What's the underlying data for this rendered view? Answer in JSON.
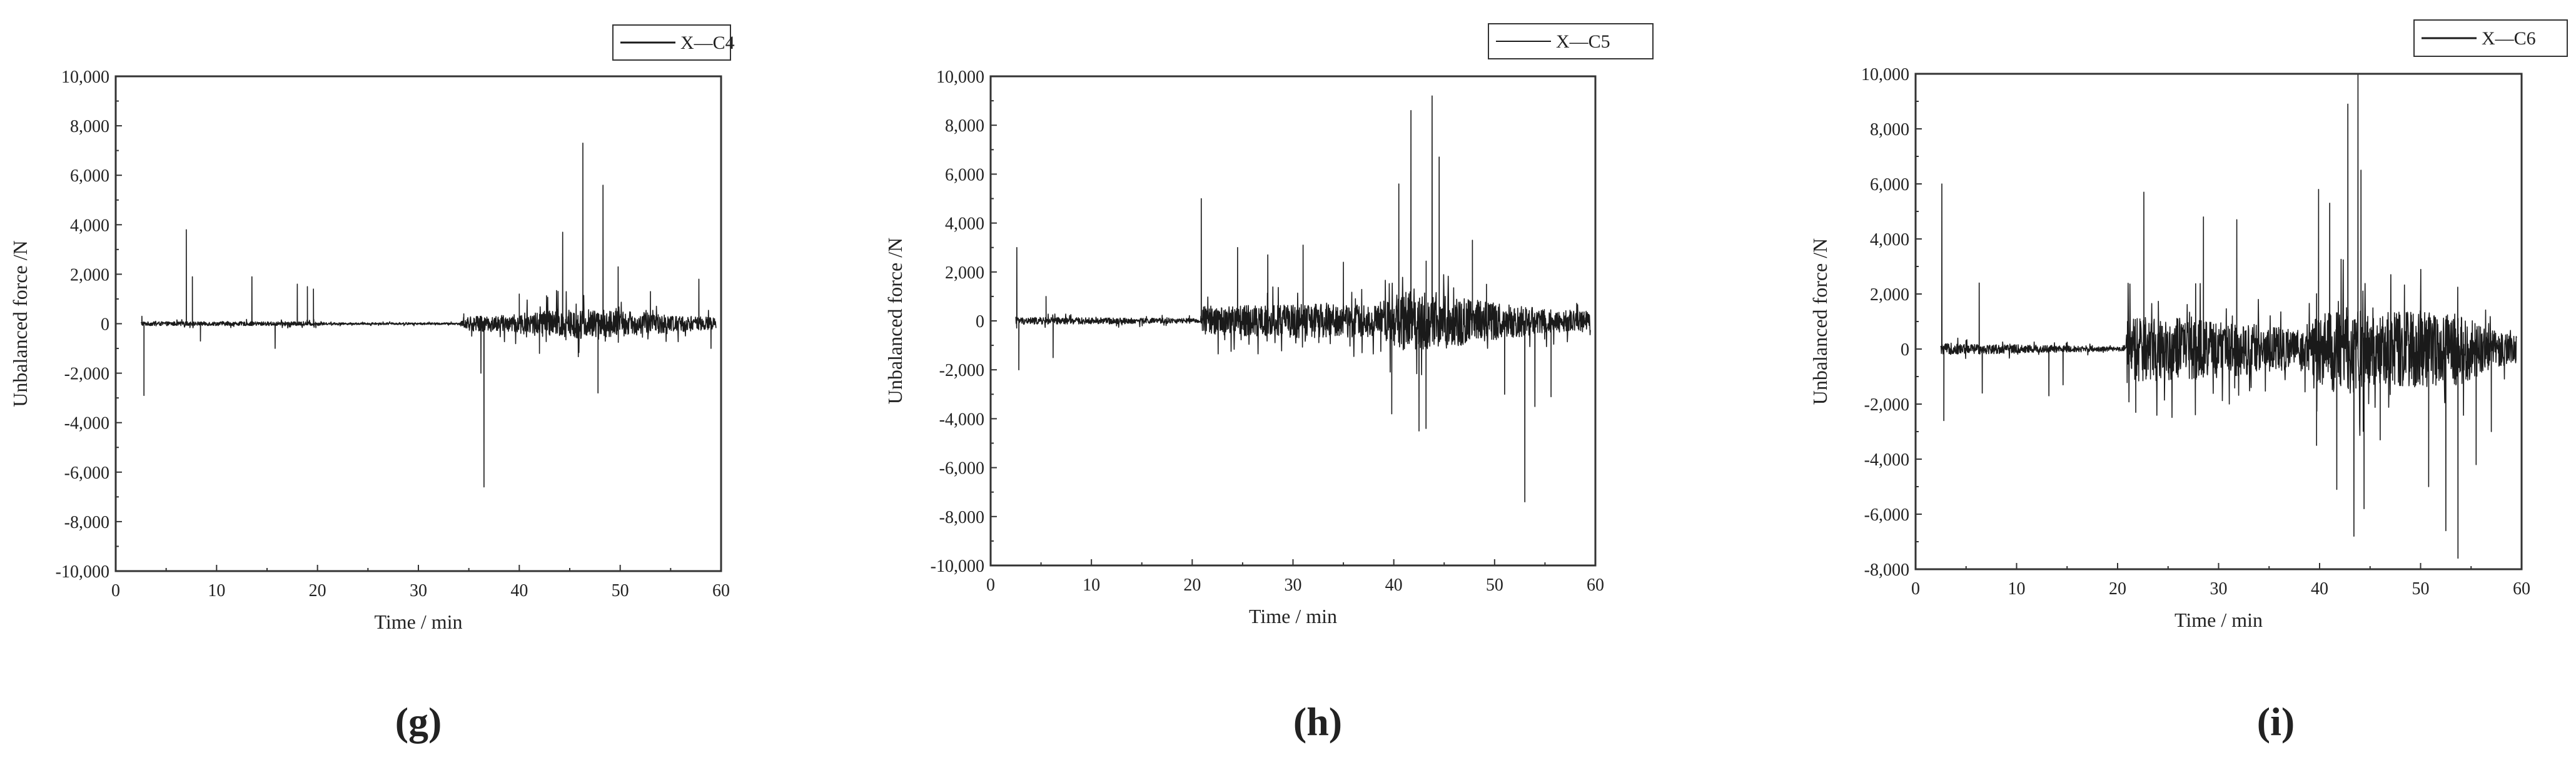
{
  "chart_data": [
    {
      "type": "line",
      "panel_label": "(g)",
      "xlabel": "Time / min",
      "ylabel": "Unbalanced force /N",
      "xlim": [
        0,
        60
      ],
      "ylim": [
        -10000,
        10000
      ],
      "x_ticks": [
        0,
        10,
        20,
        30,
        40,
        50,
        60
      ],
      "y_ticks": [
        -10000,
        -8000,
        -6000,
        -4000,
        -2000,
        0,
        2000,
        4000,
        6000,
        8000,
        10000
      ],
      "y_tick_labels": [
        "-10,000",
        "-8,000",
        "-6,000",
        "-4,000",
        "-2,000",
        "0",
        "2,000",
        "4,000",
        "6,000",
        "8,000",
        "10,000"
      ],
      "legend_position": "top-right",
      "series": [
        {
          "name": "X—C4",
          "color": "#1a1a1a",
          "x_start": 2.5,
          "x_end": 59.5,
          "noise_profile": [
            [
              2.5,
              80
            ],
            [
              20,
              80
            ],
            [
              21,
              40
            ],
            [
              34,
              40
            ],
            [
              35,
              300
            ],
            [
              39,
              350
            ],
            [
              44,
              650
            ],
            [
              49,
              550
            ],
            [
              55,
              350
            ],
            [
              59.5,
              250
            ]
          ],
          "spikes": [
            [
              2.6,
              300
            ],
            [
              2.8,
              -2900
            ],
            [
              7.0,
              3800
            ],
            [
              7.6,
              1900
            ],
            [
              8.4,
              -700
            ],
            [
              13.5,
              1900
            ],
            [
              15.8,
              -1000
            ],
            [
              18.0,
              1600
            ],
            [
              19.0,
              1500
            ],
            [
              19.6,
              1400
            ],
            [
              34.5,
              400
            ],
            [
              36.5,
              -6600
            ],
            [
              36.2,
              -2000
            ],
            [
              40.0,
              1200
            ],
            [
              42.0,
              -1200
            ],
            [
              44.3,
              3700
            ],
            [
              46.3,
              7300
            ],
            [
              47.8,
              -2800
            ],
            [
              48.3,
              5600
            ],
            [
              49.8,
              2300
            ],
            [
              53.0,
              1300
            ],
            [
              57.8,
              1800
            ],
            [
              59.0,
              -1000
            ]
          ]
        }
      ]
    },
    {
      "type": "line",
      "panel_label": "(h)",
      "xlabel": "Time / min",
      "ylabel": "Unbalanced force /N",
      "xlim": [
        0,
        60
      ],
      "ylim": [
        -10000,
        10000
      ],
      "x_ticks": [
        0,
        10,
        20,
        30,
        40,
        50,
        60
      ],
      "y_ticks": [
        -10000,
        -8000,
        -6000,
        -4000,
        -2000,
        0,
        2000,
        4000,
        6000,
        8000,
        10000
      ],
      "y_tick_labels": [
        "-10,000",
        "-8,000",
        "-6,000",
        "-4,000",
        "-2,000",
        "0",
        "2,000",
        "4,000",
        "6,000",
        "8,000",
        "10,000"
      ],
      "legend_position": "top-right",
      "series": [
        {
          "name": "X—C5",
          "color": "#1a1a1a",
          "x_start": 2.5,
          "x_end": 59.5,
          "noise_profile": [
            [
              2.5,
              150
            ],
            [
              20,
              100
            ],
            [
              20.8,
              50
            ],
            [
              21,
              600
            ],
            [
              30,
              700
            ],
            [
              38,
              650
            ],
            [
              41,
              1200
            ],
            [
              45,
              1100
            ],
            [
              50,
              800
            ],
            [
              55,
              500
            ],
            [
              59.5,
              400
            ]
          ],
          "spikes": [
            [
              2.6,
              3000
            ],
            [
              2.8,
              -2000
            ],
            [
              5.5,
              1000
            ],
            [
              6.2,
              -1500
            ],
            [
              20.9,
              5000
            ],
            [
              24.5,
              3000
            ],
            [
              27.5,
              2700
            ],
            [
              31.0,
              3100
            ],
            [
              35.0,
              2400
            ],
            [
              39.8,
              -3800
            ],
            [
              40.5,
              5600
            ],
            [
              41.7,
              8600
            ],
            [
              42.5,
              -4500
            ],
            [
              43.2,
              -4400
            ],
            [
              43.8,
              9200
            ],
            [
              44.5,
              6700
            ],
            [
              47.8,
              3300
            ],
            [
              49.2,
              1500
            ],
            [
              51.0,
              -3000
            ],
            [
              53.0,
              -7400
            ],
            [
              54.0,
              -3500
            ],
            [
              55.6,
              -3100
            ]
          ]
        }
      ]
    },
    {
      "type": "line",
      "panel_label": "(i)",
      "xlabel": "Time / min",
      "ylabel": "Unbalanced force /N",
      "xlim": [
        0,
        60
      ],
      "ylim": [
        -8000,
        10000
      ],
      "x_ticks": [
        0,
        10,
        20,
        30,
        40,
        50,
        60
      ],
      "y_ticks": [
        -8000,
        -6000,
        -4000,
        -2000,
        0,
        2000,
        4000,
        6000,
        8000,
        10000
      ],
      "y_tick_labels": [
        "-8,000",
        "-6,000",
        "-4,000",
        "-2,000",
        "0",
        "2,000",
        "4,000",
        "6,000",
        "8,000",
        "10,000"
      ],
      "legend_position": "top-right",
      "series": [
        {
          "name": "X—C6",
          "color": "#1a1a1a",
          "x_start": 2.5,
          "x_end": 59.5,
          "noise_profile": [
            [
              2.5,
              200
            ],
            [
              12,
              150
            ],
            [
              20.8,
              60
            ],
            [
              21,
              1200
            ],
            [
              28,
              1100
            ],
            [
              34,
              900
            ],
            [
              38,
              700
            ],
            [
              42,
              1800
            ],
            [
              45,
              1300
            ],
            [
              50,
              1400
            ],
            [
              54,
              1300
            ],
            [
              57,
              700
            ],
            [
              59.5,
              500
            ]
          ],
          "spikes": [
            [
              2.6,
              6000
            ],
            [
              2.8,
              -2600
            ],
            [
              6.3,
              2400
            ],
            [
              6.6,
              -1600
            ],
            [
              13.2,
              -1700
            ],
            [
              14.6,
              -1300
            ],
            [
              21.8,
              -2300
            ],
            [
              22.6,
              5700
            ],
            [
              28.5,
              4800
            ],
            [
              31.8,
              4700
            ],
            [
              39.7,
              -3500
            ],
            [
              39.9,
              5800
            ],
            [
              41.0,
              5300
            ],
            [
              41.7,
              -5100
            ],
            [
              42.8,
              8900
            ],
            [
              43.4,
              -6800
            ],
            [
              43.8,
              10000
            ],
            [
              44.1,
              6500
            ],
            [
              44.4,
              -5800
            ],
            [
              46.0,
              -3300
            ],
            [
              50.8,
              -5000
            ],
            [
              52.5,
              -6600
            ],
            [
              53.7,
              -7600
            ],
            [
              55.5,
              -4200
            ],
            [
              57.0,
              -3000
            ]
          ]
        }
      ]
    }
  ]
}
